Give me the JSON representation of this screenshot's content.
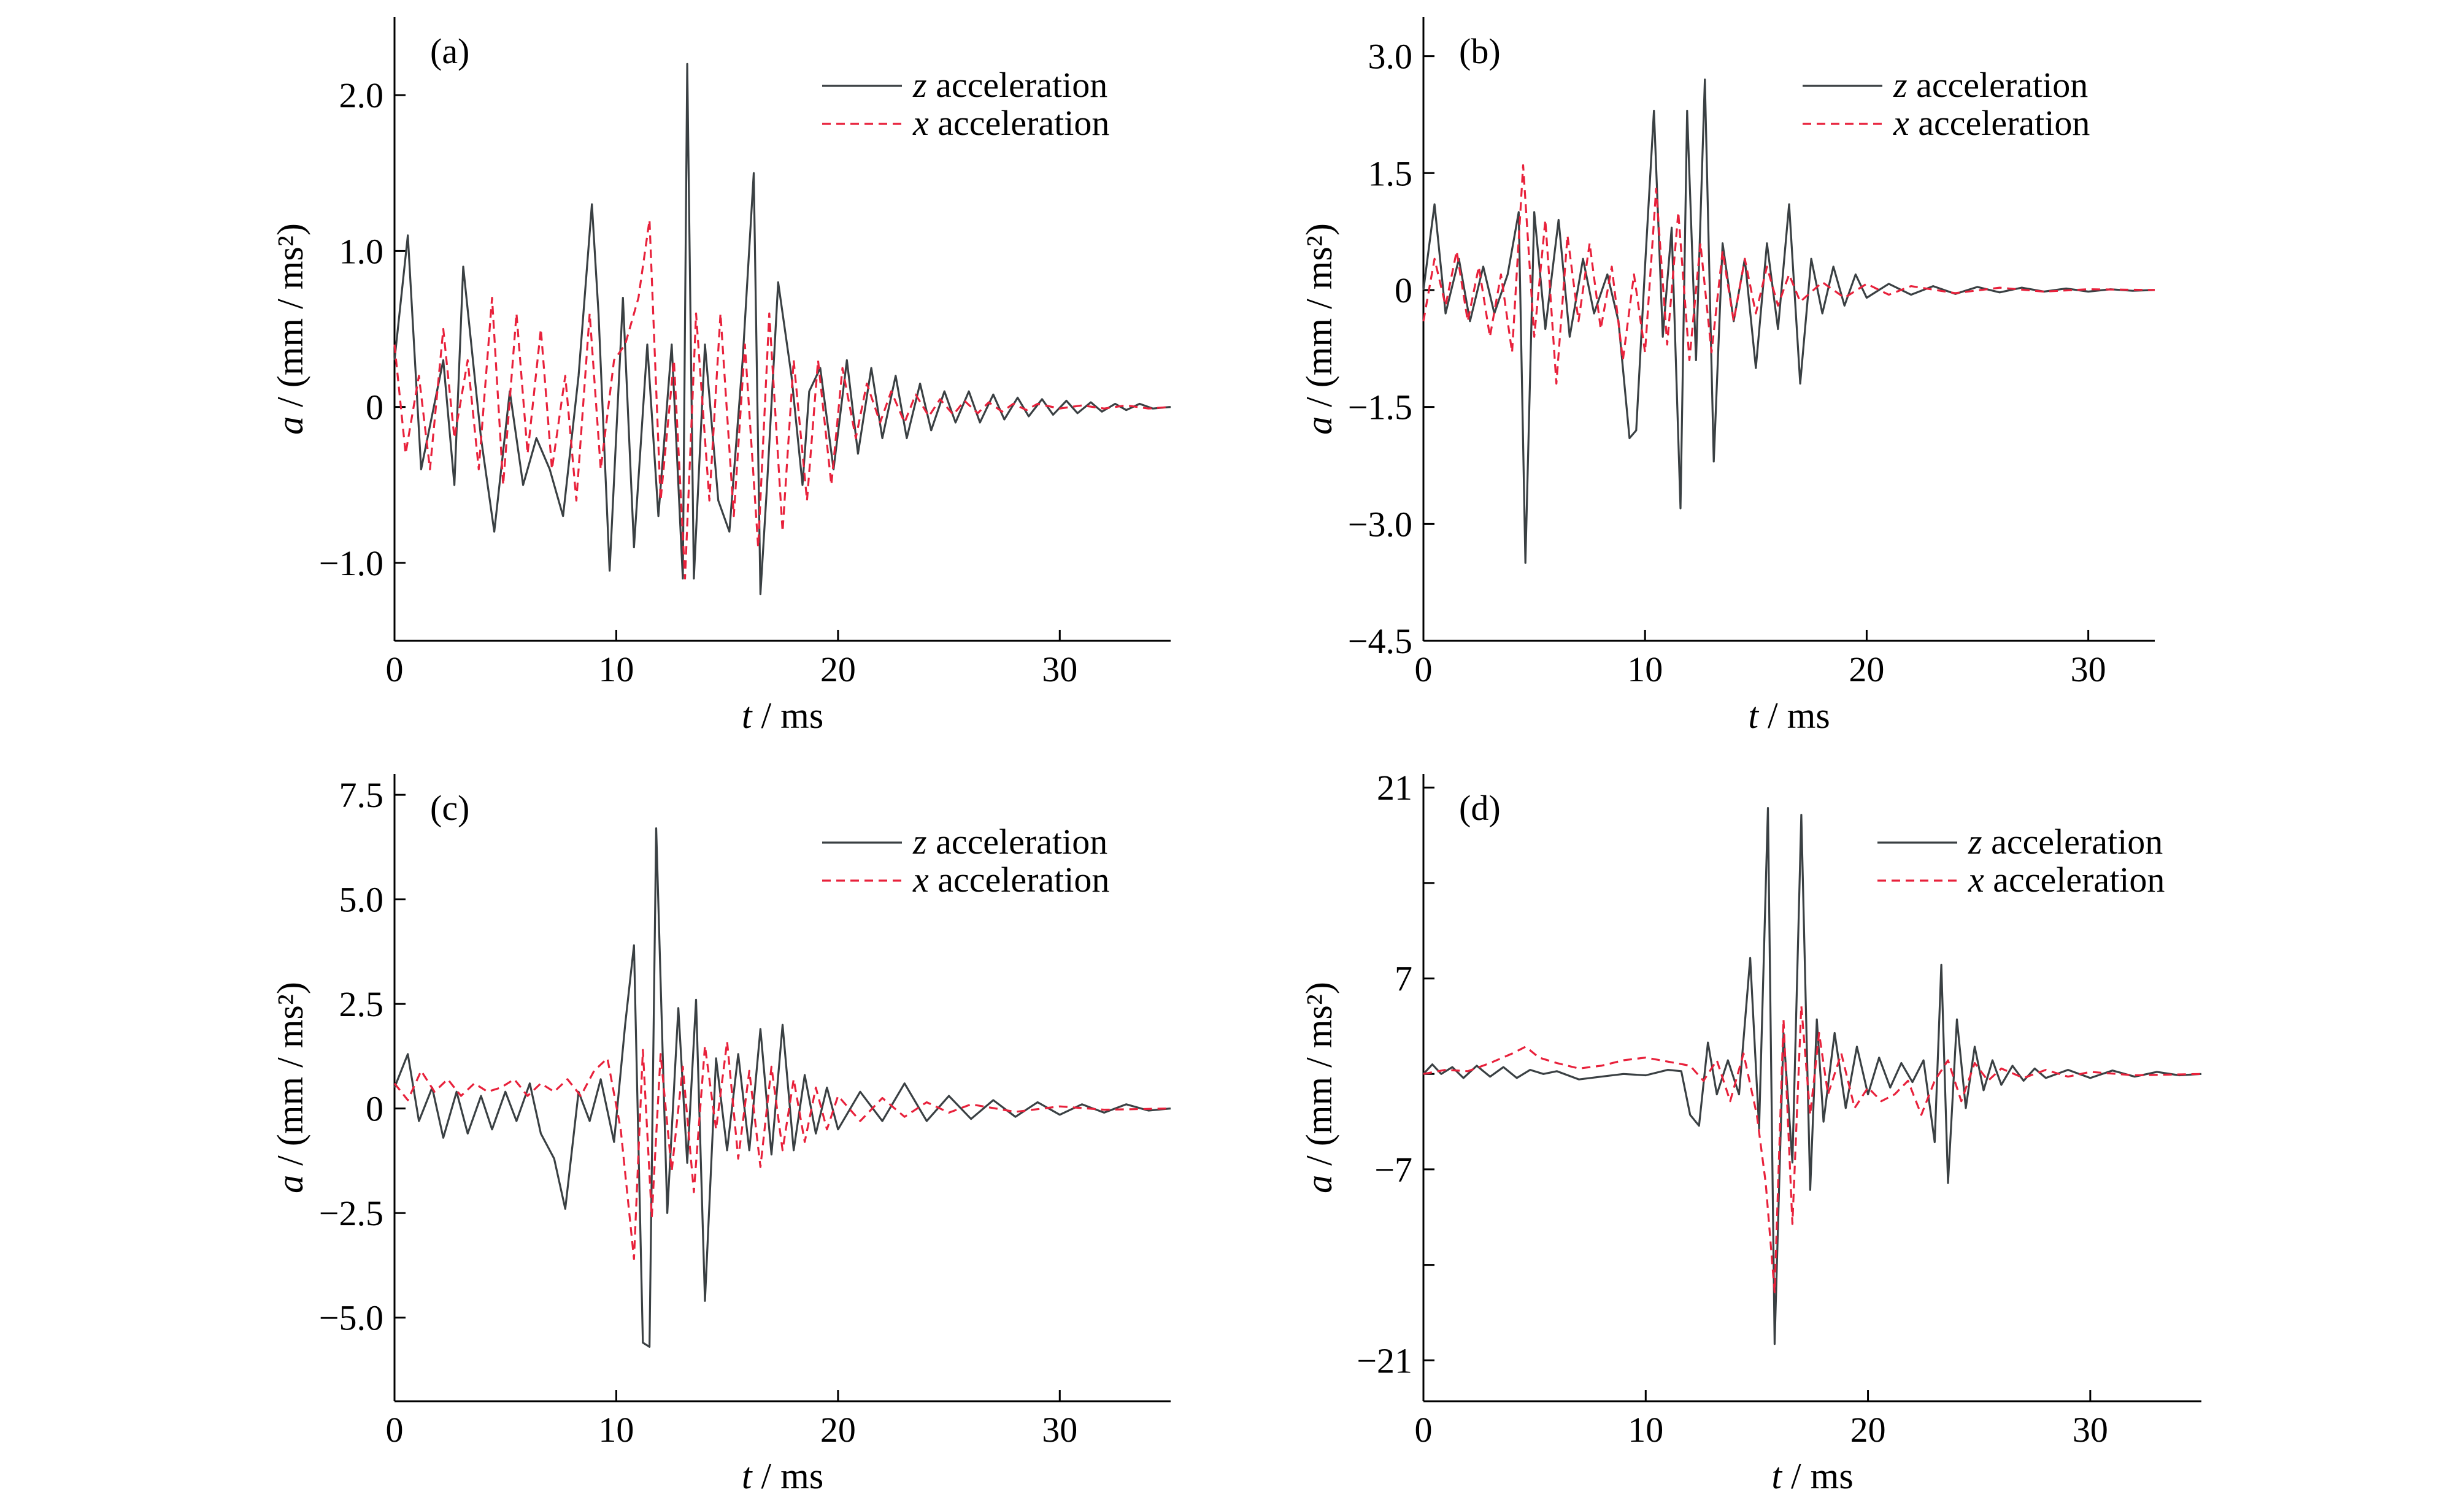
{
  "chart_data": [
    {
      "type": "line",
      "panel_label": "(a)",
      "xlabel": "t / ms",
      "ylabel": "a / (mm / ms²)",
      "xlim": [
        0,
        35
      ],
      "ylim": [
        -1.5,
        2.5
      ],
      "x_ticks": [
        0,
        10,
        20,
        30
      ],
      "y_ticks": [
        -1.0,
        0,
        1.0,
        2.0
      ],
      "y_tick_labels": [
        "−1.0",
        "0",
        "1.0",
        "2.0"
      ],
      "legend": "top-right",
      "series": [
        {
          "name": "z acceleration",
          "color": "#3a4043",
          "style": "solid",
          "x": [
            0,
            0.6,
            1.2,
            2.2,
            2.7,
            3.1,
            3.9,
            4.5,
            5.2,
            5.8,
            6.4,
            7.0,
            7.6,
            8.3,
            8.9,
            9.2,
            9.7,
            10.3,
            10.8,
            11.4,
            11.9,
            12.5,
            13.0,
            13.2,
            13.5,
            14.0,
            14.6,
            15.1,
            15.7,
            16.2,
            16.5,
            16.8,
            17.3,
            17.9,
            18.4,
            18.7,
            19.2,
            19.8,
            20.4,
            20.9,
            21.5,
            22.0,
            22.6,
            23.1,
            23.7,
            24.2,
            24.8,
            25.3,
            25.9,
            26.4,
            27.0,
            27.5,
            28.1,
            28.6,
            29.2,
            29.7,
            30.3,
            30.8,
            31.4,
            31.9,
            32.5,
            33.0,
            33.6,
            34.2,
            35.0
          ],
          "y": [
            0.3,
            1.1,
            -0.4,
            0.3,
            -0.5,
            0.9,
            -0.2,
            -0.8,
            0.1,
            -0.5,
            -0.2,
            -0.4,
            -0.7,
            0.2,
            1.3,
            0.6,
            -1.05,
            0.7,
            -0.9,
            0.4,
            -0.7,
            0.4,
            -1.1,
            2.2,
            -1.1,
            0.4,
            -0.6,
            -0.8,
            0.3,
            1.5,
            -1.2,
            -0.5,
            0.8,
            0.2,
            -0.5,
            0.1,
            0.25,
            -0.4,
            0.3,
            -0.3,
            0.25,
            -0.2,
            0.2,
            -0.2,
            0.15,
            -0.15,
            0.1,
            -0.1,
            0.1,
            -0.1,
            0.08,
            -0.08,
            0.06,
            -0.06,
            0.05,
            -0.05,
            0.04,
            -0.04,
            0.03,
            -0.03,
            0.02,
            -0.02,
            0.02,
            -0.01,
            0
          ]
        },
        {
          "name": "x acceleration",
          "color": "#e8213b",
          "style": "dashed",
          "x": [
            0,
            0.5,
            1.1,
            1.6,
            2.2,
            2.7,
            3.3,
            3.8,
            4.4,
            4.9,
            5.5,
            6.0,
            6.6,
            7.1,
            7.7,
            8.2,
            8.8,
            9.3,
            9.9,
            10.4,
            11.0,
            11.5,
            12.0,
            12.6,
            13.1,
            13.6,
            14.2,
            14.7,
            15.3,
            15.8,
            16.4,
            16.9,
            17.5,
            18.0,
            18.6,
            19.1,
            19.7,
            20.2,
            20.8,
            21.3,
            21.9,
            22.4,
            23.0,
            23.5,
            24.1,
            24.6,
            25.2,
            25.7,
            26.3,
            26.8,
            27.4,
            27.9,
            28.5,
            29.0,
            30.0,
            31.0,
            32.0,
            33.0,
            34.0,
            35.0
          ],
          "y": [
            0.4,
            -0.3,
            0.2,
            -0.4,
            0.5,
            -0.2,
            0.3,
            -0.4,
            0.7,
            -0.5,
            0.6,
            -0.3,
            0.5,
            -0.4,
            0.2,
            -0.6,
            0.6,
            -0.4,
            0.3,
            0.4,
            0.7,
            1.2,
            -0.6,
            0.3,
            -1.1,
            0.6,
            -0.6,
            0.6,
            -0.7,
            0.4,
            -0.9,
            0.6,
            -0.8,
            0.3,
            -0.6,
            0.3,
            -0.5,
            0.25,
            -0.2,
            0.15,
            -0.1,
            0.1,
            -0.1,
            0.08,
            -0.06,
            0.05,
            -0.05,
            0.04,
            -0.04,
            0.03,
            -0.03,
            0.02,
            -0.02,
            0.02,
            -0.01,
            0.01,
            -0.01,
            0.01,
            -0.01,
            0
          ]
        }
      ]
    },
    {
      "type": "line",
      "panel_label": "(b)",
      "xlabel": "t / ms",
      "ylabel": "a / (mm / ms²)",
      "xlim": [
        0,
        33
      ],
      "ylim": [
        -4.5,
        3.5
      ],
      "x_ticks": [
        0,
        10,
        20,
        30
      ],
      "y_ticks": [
        -4.5,
        -3.0,
        -1.5,
        0,
        1.5,
        3.0
      ],
      "y_tick_labels": [
        "−4.5",
        "−3.0",
        "−1.5",
        "0",
        "1.5",
        "3.0"
      ],
      "legend": "top-right",
      "series": [
        {
          "name": "z acceleration",
          "color": "#3a4043",
          "style": "solid",
          "x": [
            0,
            0.5,
            1.0,
            1.6,
            2.1,
            2.7,
            3.2,
            3.8,
            4.3,
            4.6,
            5.0,
            5.5,
            6.1,
            6.6,
            7.2,
            7.7,
            8.3,
            8.8,
            9.3,
            9.6,
            10.0,
            10.4,
            10.8,
            11.2,
            11.6,
            11.9,
            12.3,
            12.7,
            13.1,
            13.5,
            14.0,
            14.5,
            15.0,
            15.5,
            16.0,
            16.5,
            17.0,
            17.5,
            18.0,
            18.5,
            19.0,
            19.5,
            20.0,
            21.0,
            22.0,
            23.0,
            24.0,
            25.0,
            26.0,
            27.0,
            28.0,
            29.0,
            30.0,
            31.0,
            32.0,
            33.0
          ],
          "y": [
            0,
            1.1,
            -0.3,
            0.4,
            -0.4,
            0.3,
            -0.3,
            0.2,
            1.0,
            -3.5,
            1.0,
            -0.5,
            0.9,
            -0.6,
            0.4,
            -0.3,
            0.2,
            -0.4,
            -1.9,
            -1.8,
            0.3,
            2.3,
            -0.6,
            0.8,
            -2.8,
            2.3,
            -0.9,
            2.7,
            -2.2,
            0.6,
            -0.4,
            0.4,
            -1.0,
            0.6,
            -0.5,
            1.1,
            -1.2,
            0.4,
            -0.3,
            0.3,
            -0.2,
            0.2,
            -0.1,
            0.08,
            -0.06,
            0.05,
            -0.05,
            0.04,
            -0.03,
            0.03,
            -0.02,
            0.02,
            -0.02,
            0.01,
            -0.01,
            0
          ]
        },
        {
          "name": "x acceleration",
          "color": "#e8213b",
          "style": "dashed",
          "x": [
            0,
            0.5,
            1.0,
            1.5,
            2.0,
            2.5,
            3.0,
            3.5,
            4.0,
            4.5,
            5.0,
            5.5,
            6.0,
            6.5,
            7.0,
            7.5,
            8.0,
            8.5,
            9.0,
            9.5,
            10.0,
            10.5,
            11.0,
            11.5,
            12.0,
            12.5,
            13.0,
            13.5,
            14.0,
            14.5,
            15.0,
            15.5,
            16.0,
            16.5,
            17.0,
            18.0,
            19.0,
            20.0,
            21.0,
            22.0,
            24.0,
            26.0,
            28.0,
            30.0,
            33.0
          ],
          "y": [
            -0.4,
            0.4,
            -0.2,
            0.5,
            -0.4,
            0.3,
            -0.6,
            0.2,
            -0.8,
            1.6,
            -0.6,
            0.9,
            -1.2,
            0.7,
            -0.4,
            0.6,
            -0.5,
            0.3,
            -0.9,
            0.2,
            -0.8,
            1.3,
            -0.7,
            1.0,
            -0.9,
            0.6,
            -0.8,
            0.5,
            -0.4,
            0.4,
            -0.3,
            0.3,
            -0.2,
            0.2,
            -0.15,
            0.1,
            -0.1,
            0.08,
            -0.06,
            0.05,
            -0.04,
            0.03,
            -0.02,
            0.01,
            0
          ]
        }
      ]
    },
    {
      "type": "line",
      "panel_label": "(c)",
      "xlabel": "t / ms",
      "ylabel": "a / (mm / ms²)",
      "xlim": [
        0,
        35
      ],
      "ylim": [
        -7.0,
        8.0
      ],
      "x_ticks": [
        0,
        10,
        20,
        30
      ],
      "y_ticks": [
        -5.0,
        -2.5,
        0,
        2.5,
        5.0,
        7.5
      ],
      "y_tick_labels": [
        "−5.0",
        "−2.5",
        "0",
        "2.5",
        "5.0",
        "7.5"
      ],
      "legend": "top-right",
      "series": [
        {
          "name": "z acceleration",
          "color": "#3a4043",
          "style": "solid",
          "x": [
            0,
            0.6,
            1.1,
            1.7,
            2.2,
            2.8,
            3.3,
            3.9,
            4.4,
            5.0,
            5.5,
            6.1,
            6.6,
            7.2,
            7.7,
            8.3,
            8.8,
            9.3,
            9.9,
            10.4,
            10.8,
            11.2,
            11.5,
            11.8,
            12.3,
            12.8,
            13.2,
            13.6,
            14.0,
            14.5,
            15.0,
            15.5,
            16.0,
            16.5,
            17.0,
            17.5,
            18.0,
            18.5,
            19.0,
            19.5,
            20.0,
            21.0,
            22.0,
            23.0,
            24.0,
            25.0,
            26.0,
            27.0,
            28.0,
            29.0,
            30.0,
            31.0,
            32.0,
            33.0,
            34.0,
            35.0
          ],
          "y": [
            0.5,
            1.3,
            -0.3,
            0.5,
            -0.7,
            0.4,
            -0.6,
            0.3,
            -0.5,
            0.4,
            -0.3,
            0.6,
            -0.6,
            -1.2,
            -2.4,
            0.4,
            -0.3,
            0.7,
            -0.8,
            2.0,
            3.9,
            -5.6,
            -5.7,
            6.7,
            -2.5,
            2.4,
            -1.3,
            2.6,
            -4.6,
            1.2,
            -1.0,
            1.3,
            -1.0,
            1.9,
            -1.1,
            2.0,
            -1.0,
            0.8,
            -0.6,
            0.5,
            -0.5,
            0.4,
            -0.3,
            0.6,
            -0.3,
            0.3,
            -0.25,
            0.2,
            -0.2,
            0.15,
            -0.15,
            0.1,
            -0.1,
            0.1,
            -0.05,
            0
          ]
        },
        {
          "name": "x acceleration",
          "color": "#e8213b",
          "style": "dashed",
          "x": [
            0,
            0.6,
            1.2,
            1.8,
            2.4,
            3.0,
            3.6,
            4.2,
            4.8,
            5.4,
            6.0,
            6.6,
            7.2,
            7.8,
            8.4,
            9.0,
            9.6,
            10.2,
            10.8,
            11.2,
            11.6,
            12.0,
            12.5,
            13.0,
            13.5,
            14.0,
            14.5,
            15.0,
            15.5,
            16.0,
            16.5,
            17.0,
            17.5,
            18.0,
            18.5,
            19.0,
            19.5,
            20.0,
            21.0,
            22.0,
            23.0,
            24.0,
            25.0,
            26.0,
            28.0,
            30.0,
            32.0,
            35.0
          ],
          "y": [
            0.6,
            0.2,
            0.9,
            0.4,
            0.7,
            0.3,
            0.6,
            0.4,
            0.5,
            0.7,
            0.3,
            0.6,
            0.4,
            0.7,
            0.3,
            0.9,
            1.2,
            -0.5,
            -3.6,
            1.4,
            -2.6,
            1.3,
            -1.5,
            1.0,
            -2.0,
            1.5,
            -0.5,
            1.6,
            -1.2,
            0.9,
            -1.4,
            1.0,
            -1.0,
            0.7,
            -0.8,
            0.5,
            -0.5,
            0.3,
            -0.3,
            0.25,
            -0.2,
            0.15,
            -0.1,
            0.1,
            -0.08,
            0.05,
            -0.03,
            0
          ]
        }
      ]
    },
    {
      "type": "line",
      "panel_label": "(d)",
      "xlabel": "t / ms",
      "ylabel": "a / (mm / ms²)",
      "xlim": [
        0,
        35
      ],
      "ylim": [
        -24,
        22
      ],
      "x_ticks": [
        0,
        10,
        20,
        30
      ],
      "y_ticks": [
        -21,
        -14,
        -7,
        0,
        7,
        14,
        21
      ],
      "y_tick_labels": [
        "−21",
        "",
        "−7",
        "",
        "7",
        "",
        "21"
      ],
      "legend": "top-right",
      "series": [
        {
          "name": "z acceleration",
          "color": "#3a4043",
          "style": "solid",
          "x": [
            0,
            0.4,
            0.8,
            1.3,
            1.8,
            2.4,
            3.0,
            3.6,
            4.2,
            4.8,
            5.4,
            6.0,
            7.0,
            8.0,
            9.0,
            10.0,
            11.0,
            11.6,
            12.0,
            12.4,
            12.8,
            13.2,
            13.7,
            14.2,
            14.7,
            15.1,
            15.5,
            15.8,
            16.2,
            16.6,
            17.0,
            17.4,
            17.7,
            18.0,
            18.5,
            19.0,
            19.5,
            20.0,
            20.5,
            21.0,
            21.5,
            22.0,
            22.5,
            23.0,
            23.3,
            23.6,
            24.0,
            24.4,
            24.8,
            25.2,
            25.6,
            26.0,
            26.5,
            27.0,
            27.5,
            28.0,
            29.0,
            30.0,
            31.0,
            32.0,
            33.0,
            34.0,
            35.0
          ],
          "y": [
            0,
            0.7,
            0,
            0.5,
            -0.3,
            0.6,
            -0.2,
            0.5,
            -0.3,
            0.3,
            0,
            0.2,
            -0.4,
            -0.2,
            0,
            -0.1,
            0.3,
            0.2,
            -3.0,
            -3.8,
            2.3,
            -1.5,
            1.0,
            -1.5,
            8.5,
            -4.0,
            19.5,
            -19.8,
            3.0,
            -6.5,
            19.0,
            -8.5,
            4.0,
            -3.5,
            3.0,
            -2.5,
            2.0,
            -1.5,
            1.2,
            -1.0,
            0.8,
            -0.6,
            1.0,
            -5.0,
            8.0,
            -8.0,
            4.0,
            -2.5,
            2.0,
            -1.2,
            1.0,
            -0.8,
            0.6,
            -0.5,
            0.4,
            -0.3,
            0.3,
            -0.3,
            0.25,
            -0.2,
            0.15,
            -0.1,
            0
          ]
        },
        {
          "name": "x acceleration",
          "color": "#e8213b",
          "style": "dashed",
          "x": [
            0,
            1.0,
            2.0,
            3.0,
            4.0,
            4.6,
            5.2,
            6.0,
            7.0,
            8.0,
            9.0,
            10.0,
            11.0,
            12.0,
            12.6,
            13.2,
            13.8,
            14.4,
            15.0,
            15.4,
            15.8,
            16.2,
            16.6,
            17.0,
            17.4,
            17.8,
            18.2,
            18.8,
            19.4,
            20.0,
            20.6,
            21.2,
            21.8,
            22.4,
            23.0,
            23.6,
            24.2,
            24.8,
            25.4,
            26.0,
            27.0,
            28.0,
            29.0,
            30.0,
            32.0,
            35.0
          ],
          "y": [
            0,
            0.3,
            0.2,
            0.8,
            1.5,
            2.0,
            1.2,
            0.8,
            0.4,
            0.6,
            1.0,
            1.2,
            0.9,
            0.6,
            -0.5,
            1.0,
            -2.0,
            1.5,
            -3.0,
            -8.0,
            -16.0,
            4.0,
            -11.0,
            5.0,
            -3.0,
            3.0,
            -1.5,
            1.5,
            -2.5,
            -1.0,
            -2.0,
            -1.5,
            -0.5,
            -3.0,
            -0.5,
            1.0,
            -2.0,
            0.8,
            -0.5,
            0.4,
            -0.3,
            0.3,
            -0.2,
            0.15,
            -0.1,
            0
          ]
        }
      ]
    }
  ]
}
